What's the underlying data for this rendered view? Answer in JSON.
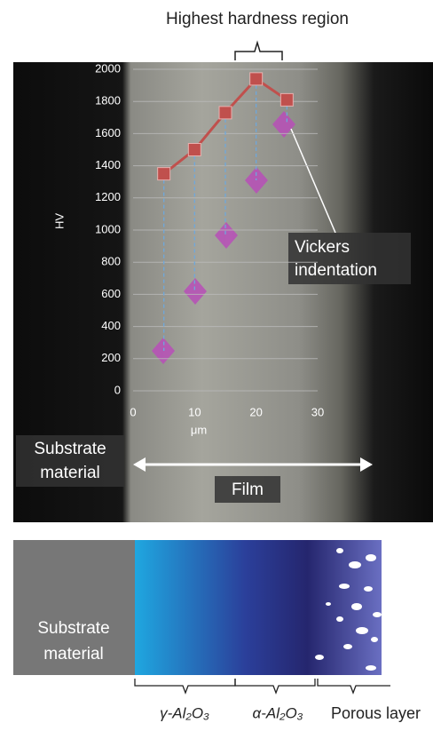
{
  "chart_data": {
    "type": "line",
    "x": [
      5,
      10,
      15,
      20,
      25
    ],
    "values": [
      1350,
      1500,
      1730,
      1940,
      1810
    ],
    "color": "#c0504d",
    "xlim": [
      0,
      30
    ],
    "xticks": [
      0,
      10,
      20,
      30
    ],
    "ylim": [
      0,
      2000
    ],
    "yticks": [
      0,
      200,
      400,
      600,
      800,
      1000,
      1200,
      1400,
      1600,
      1800,
      2000
    ],
    "xlabel": "μm",
    "ylabel": "HV",
    "grid": true,
    "annotations": {
      "highest": "Highest hardness region",
      "vickers": [
        "Vickers",
        "indentation"
      ],
      "substrate": [
        "Substrate",
        "material"
      ],
      "film": "Film"
    },
    "layers": {
      "substrate": [
        "Substrate",
        "material"
      ],
      "gamma": "γ-Al₂O₃",
      "alpha": "α-Al₂O₃",
      "porous": "Porous layer"
    }
  }
}
